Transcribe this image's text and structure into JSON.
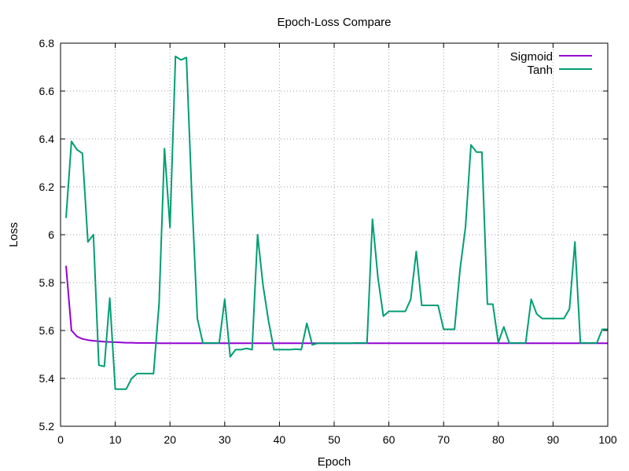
{
  "chart_data": {
    "type": "line",
    "title": "Epoch-Loss Compare",
    "xlabel": "Epoch",
    "ylabel": "Loss",
    "xlim": [
      0,
      100
    ],
    "ylim": [
      5.2,
      6.8
    ],
    "xticks": [
      0,
      10,
      20,
      30,
      40,
      50,
      60,
      70,
      80,
      90,
      100
    ],
    "yticks": [
      5.2,
      5.4,
      5.6,
      5.8,
      6.0,
      6.2,
      6.4,
      6.6,
      6.8
    ],
    "xtick_labels": [
      "0",
      "10",
      "20",
      "30",
      "40",
      "50",
      "60",
      "70",
      "80",
      "90",
      "100"
    ],
    "ytick_labels": [
      "5.2",
      "5.4",
      "5.6",
      "5.8",
      "6",
      "6.2",
      "6.4",
      "6.6",
      "6.8"
    ],
    "grid": true,
    "legend_position": "top-right",
    "x": [
      1,
      2,
      3,
      4,
      5,
      6,
      7,
      8,
      9,
      10,
      11,
      12,
      13,
      14,
      15,
      16,
      17,
      18,
      19,
      20,
      21,
      22,
      23,
      24,
      25,
      26,
      27,
      28,
      29,
      30,
      31,
      32,
      33,
      34,
      35,
      36,
      37,
      38,
      39,
      40,
      41,
      42,
      43,
      44,
      45,
      46,
      47,
      48,
      49,
      50,
      51,
      52,
      53,
      54,
      55,
      56,
      57,
      58,
      59,
      60,
      61,
      62,
      63,
      64,
      65,
      66,
      67,
      68,
      69,
      70,
      71,
      72,
      73,
      74,
      75,
      76,
      77,
      78,
      79,
      80,
      81,
      82,
      83,
      84,
      85,
      86,
      87,
      88,
      89,
      90,
      91,
      92,
      93,
      94,
      95,
      96,
      97,
      98,
      99,
      100
    ],
    "series": [
      {
        "name": "Sigmoid",
        "color": "#9400d3",
        "values": [
          5.87,
          5.6,
          5.575,
          5.565,
          5.56,
          5.557,
          5.555,
          5.553,
          5.552,
          5.551,
          5.55,
          5.549,
          5.549,
          5.548,
          5.548,
          5.548,
          5.548,
          5.547,
          5.547,
          5.547,
          5.547,
          5.547,
          5.547,
          5.547,
          5.547,
          5.547,
          5.547,
          5.547,
          5.547,
          5.547,
          5.547,
          5.547,
          5.547,
          5.547,
          5.547,
          5.547,
          5.547,
          5.547,
          5.547,
          5.547,
          5.547,
          5.547,
          5.547,
          5.547,
          5.547,
          5.547,
          5.547,
          5.547,
          5.547,
          5.547,
          5.547,
          5.547,
          5.547,
          5.547,
          5.547,
          5.547,
          5.547,
          5.547,
          5.547,
          5.547,
          5.547,
          5.547,
          5.547,
          5.547,
          5.547,
          5.547,
          5.547,
          5.547,
          5.547,
          5.547,
          5.547,
          5.547,
          5.547,
          5.547,
          5.547,
          5.547,
          5.547,
          5.547,
          5.547,
          5.547,
          5.547,
          5.547,
          5.547,
          5.547,
          5.547,
          5.547,
          5.547,
          5.547,
          5.547,
          5.547,
          5.547,
          5.547,
          5.547,
          5.547,
          5.547,
          5.547,
          5.547,
          5.547,
          5.547,
          5.547
        ]
      },
      {
        "name": "Tanh",
        "color": "#009e73",
        "values": [
          6.07,
          6.39,
          6.355,
          6.34,
          5.97,
          6.0,
          5.455,
          5.45,
          5.735,
          5.355,
          5.355,
          5.355,
          5.4,
          5.42,
          5.42,
          5.42,
          5.42,
          5.71,
          6.36,
          6.03,
          6.745,
          6.73,
          6.74,
          6.16,
          5.65,
          5.548,
          5.548,
          5.548,
          5.548,
          5.73,
          5.49,
          5.52,
          5.52,
          5.525,
          5.52,
          6.0,
          5.79,
          5.64,
          5.52,
          5.52,
          5.52,
          5.52,
          5.522,
          5.52,
          5.63,
          5.54,
          5.547,
          5.547,
          5.547,
          5.547,
          5.547,
          5.547,
          5.547,
          5.548,
          5.548,
          5.548,
          6.065,
          5.82,
          5.66,
          5.68,
          5.68,
          5.68,
          5.68,
          5.73,
          5.93,
          5.705,
          5.705,
          5.705,
          5.705,
          5.605,
          5.605,
          5.605,
          5.855,
          6.03,
          6.375,
          6.345,
          6.345,
          5.71,
          5.71,
          5.55,
          5.615,
          5.548,
          5.548,
          5.548,
          5.548,
          5.73,
          5.67,
          5.65,
          5.65,
          5.65,
          5.65,
          5.65,
          5.69,
          5.97,
          5.548,
          5.548,
          5.548,
          5.548,
          5.605,
          5.605
        ]
      }
    ]
  }
}
